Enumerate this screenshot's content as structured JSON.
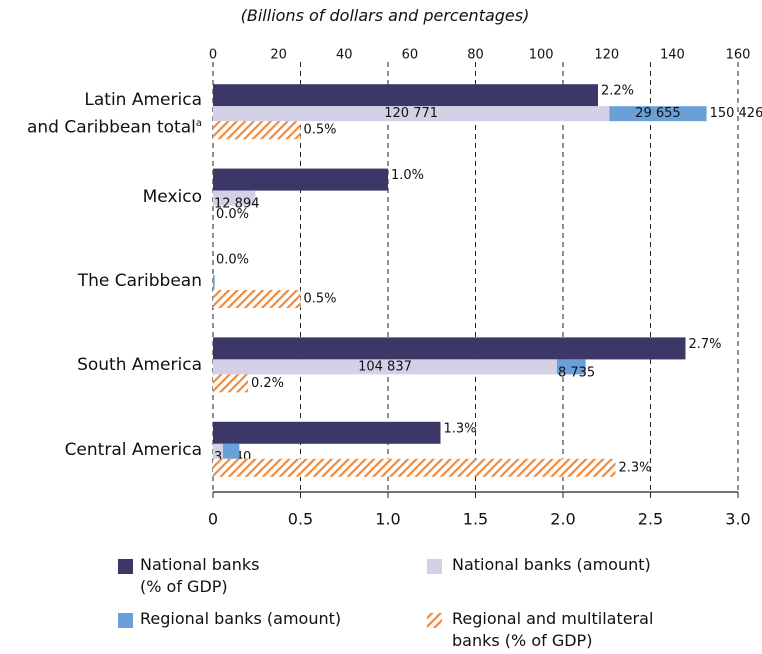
{
  "chart_data": {
    "type": "bar",
    "orientation": "horizontal",
    "subtitle": "(Billions of dollars and percentages)",
    "categories": [
      "Latin America\nand Caribbean total",
      "Mexico",
      "The Caribbean",
      "South America",
      "Central America"
    ],
    "category_superscripts": [
      "a",
      null,
      null,
      null,
      null
    ],
    "series": [
      {
        "name": "National banks\n(% of GDP)",
        "color": "#3b3767",
        "axis": "x",
        "values": [
          2.2,
          1.0,
          0.0,
          2.7,
          1.3
        ],
        "value_labels": [
          "2.2%",
          "1.0%",
          "0.0%",
          "2.7%",
          "1.3%"
        ]
      },
      {
        "name": "National banks (amount)",
        "color": "#d4d0e8",
        "axis": "x2",
        "values": [
          120.771,
          12.894,
          null,
          104.837,
          3.04
        ],
        "value_labels": [
          "120 771",
          "12 894",
          null,
          "104 837",
          "3 040"
        ]
      },
      {
        "name": "Regional banks (amount)",
        "color": "#6a9fd8",
        "axis": "x2",
        "values": [
          29.655,
          null,
          0.5,
          8.735,
          5.0
        ],
        "value_labels": [
          "29 655",
          null,
          null,
          "8 735",
          null
        ]
      },
      {
        "name": "Regional and multilateral\nbanks (% of GDP)",
        "color": "#f08a3c",
        "hatch": true,
        "axis": "x",
        "values": [
          0.5,
          0.0,
          0.5,
          0.2,
          2.3
        ],
        "value_labels": [
          "0.5%",
          "0.0%",
          "0.5%",
          "0.2%",
          "2.3%"
        ]
      }
    ],
    "annotations": [
      {
        "text": "150 426",
        "x": 150.426
      }
    ],
    "xlim": [
      0,
      3
    ],
    "xticks": [
      0,
      0.5,
      {
        "value": 1,
        "label": "1.0"
      },
      1.5,
      {
        "value": 2,
        "label": "2.0"
      },
      2.5,
      {
        "value": 3,
        "label": "3.0"
      }
    ],
    "x2lim": [
      0,
      160
    ],
    "x2ticks": [
      0,
      20,
      40,
      60,
      80,
      100,
      120,
      140,
      160
    ],
    "grid": true
  }
}
